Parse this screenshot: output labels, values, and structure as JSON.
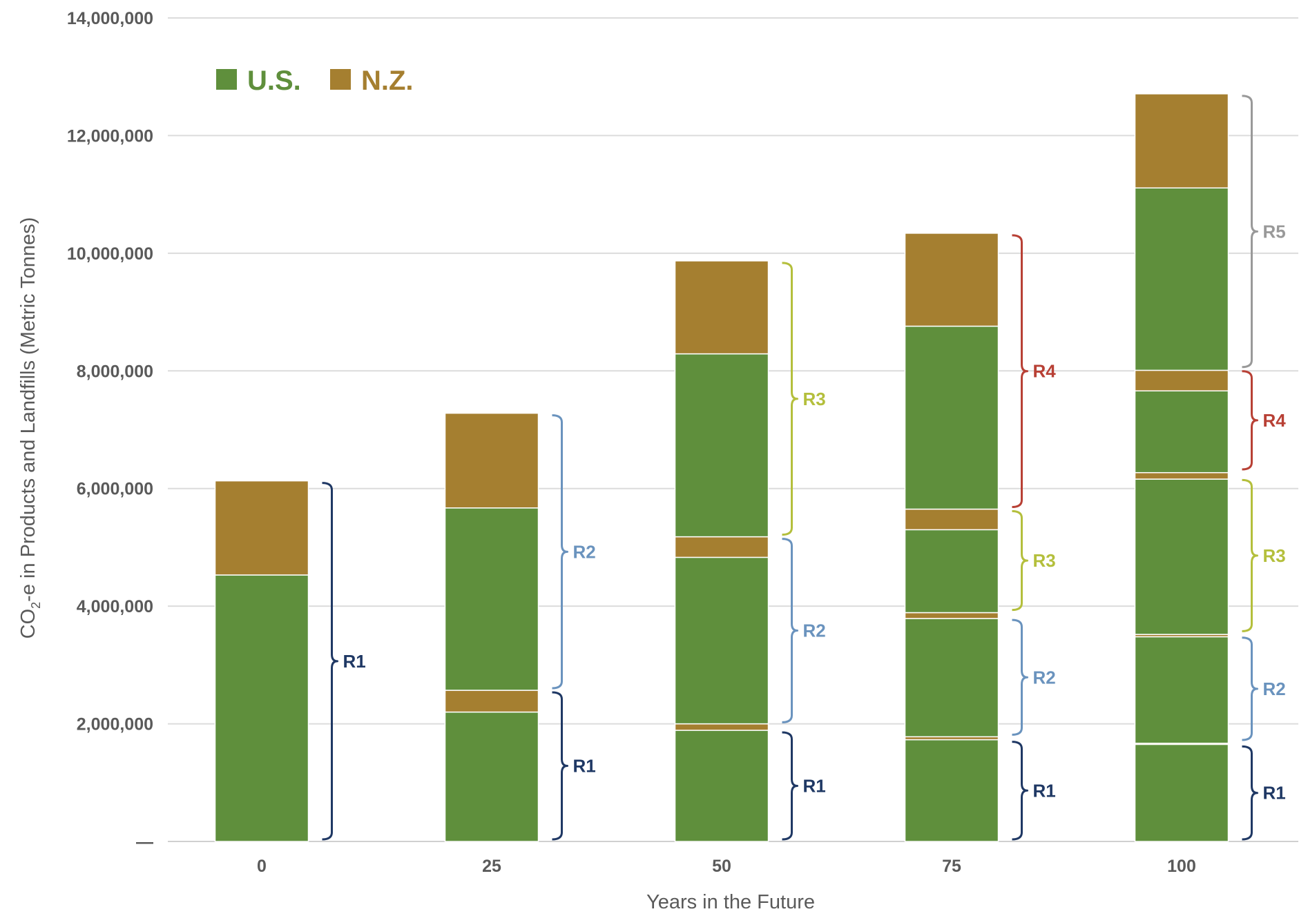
{
  "chart_data": {
    "type": "bar",
    "stacked": true,
    "categories": [
      "0",
      "25",
      "50",
      "75",
      "100"
    ],
    "xlabel": "Years in the Future",
    "ylabel_main": "CO",
    "ylabel_sub": "2",
    "ylabel_rest": "-e in Products and Landfills (Metric Tonnes)",
    "ylim": [
      0,
      14000000
    ],
    "yticks": [
      {
        "value": 0,
        "label": "—"
      },
      {
        "value": 2000000,
        "label": "2,000,000"
      },
      {
        "value": 4000000,
        "label": "4,000,000"
      },
      {
        "value": 6000000,
        "label": "6,000,000"
      },
      {
        "value": 8000000,
        "label": "8,000,000"
      },
      {
        "value": 10000000,
        "label": "10,000,000"
      },
      {
        "value": 12000000,
        "label": "12,000,000"
      },
      {
        "value": 14000000,
        "label": "14,000,000"
      }
    ],
    "grid": true,
    "legend_position": "top-left",
    "legend": [
      {
        "name": "U.S.",
        "color": "#5f8f3c"
      },
      {
        "name": "N.Z.",
        "color": "#a57f30"
      }
    ],
    "stacks": [
      {
        "category": "0",
        "segments": [
          {
            "series": "U.S.",
            "value": 4530000
          },
          {
            "series": "N.Z.",
            "value": 1600000
          }
        ],
        "braces": [
          {
            "label": "R1",
            "from": 0,
            "to": 6130000,
            "color": "#1f3864"
          }
        ]
      },
      {
        "category": "25",
        "segments": [
          {
            "series": "U.S.",
            "value": 2200000
          },
          {
            "series": "N.Z.",
            "value": 370000
          },
          {
            "series": "U.S.",
            "value": 3100000
          },
          {
            "series": "N.Z.",
            "value": 1610000
          }
        ],
        "braces": [
          {
            "label": "R1",
            "from": 0,
            "to": 2570000,
            "color": "#1f3864"
          },
          {
            "label": "R2",
            "from": 2570000,
            "to": 7280000,
            "color": "#6a93be"
          }
        ]
      },
      {
        "category": "50",
        "segments": [
          {
            "series": "U.S.",
            "value": 1890000
          },
          {
            "series": "N.Z.",
            "value": 110000
          },
          {
            "series": "U.S.",
            "value": 2830000
          },
          {
            "series": "N.Z.",
            "value": 350000
          },
          {
            "series": "U.S.",
            "value": 3110000
          },
          {
            "series": "N.Z.",
            "value": 1580000
          }
        ],
        "braces": [
          {
            "label": "R1",
            "from": 0,
            "to": 1890000,
            "color": "#1f3864"
          },
          {
            "label": "R2",
            "from": 1990000,
            "to": 5180000,
            "color": "#6a93be"
          },
          {
            "label": "R3",
            "from": 5180000,
            "to": 9870000,
            "color": "#b4bf3c"
          }
        ]
      },
      {
        "category": "75",
        "segments": [
          {
            "series": "U.S.",
            "value": 1730000
          },
          {
            "series": "N.Z.",
            "value": 50000
          },
          {
            "series": "U.S.",
            "value": 2010000
          },
          {
            "series": "N.Z.",
            "value": 100000
          },
          {
            "series": "U.S.",
            "value": 1410000
          },
          {
            "series": "N.Z.",
            "value": 350000
          },
          {
            "series": "U.S.",
            "value": 3110000
          },
          {
            "series": "N.Z.",
            "value": 1580000
          }
        ],
        "braces": [
          {
            "label": "R1",
            "from": 0,
            "to": 1730000,
            "color": "#1f3864"
          },
          {
            "label": "R2",
            "from": 1780000,
            "to": 3800000,
            "color": "#6a93be"
          },
          {
            "label": "R3",
            "from": 3900000,
            "to": 5650000,
            "color": "#b4bf3c"
          },
          {
            "label": "R4",
            "from": 5650000,
            "to": 10340000,
            "color": "#b84035"
          }
        ]
      },
      {
        "category": "100",
        "segments": [
          {
            "series": "U.S.",
            "value": 1650000
          },
          {
            "series": "N.Z.",
            "value": 20000
          },
          {
            "series": "U.S.",
            "value": 1810000
          },
          {
            "series": "N.Z.",
            "value": 40000
          },
          {
            "series": "U.S.",
            "value": 2640000
          },
          {
            "series": "N.Z.",
            "value": 110000
          },
          {
            "series": "U.S.",
            "value": 1390000
          },
          {
            "series": "N.Z.",
            "value": 350000
          },
          {
            "series": "U.S.",
            "value": 3100000
          },
          {
            "series": "N.Z.",
            "value": 1600000
          }
        ],
        "braces": [
          {
            "label": "R1",
            "from": 0,
            "to": 1650000,
            "color": "#1f3864"
          },
          {
            "label": "R2",
            "from": 1690000,
            "to": 3500000,
            "color": "#6a93be"
          },
          {
            "label": "R3",
            "from": 3540000,
            "to": 6180000,
            "color": "#b4bf3c"
          },
          {
            "label": "R4",
            "from": 6290000,
            "to": 8030000,
            "color": "#b84035"
          },
          {
            "label": "R5",
            "from": 8030000,
            "to": 12710000,
            "color": "#999999"
          }
        ]
      }
    ]
  }
}
